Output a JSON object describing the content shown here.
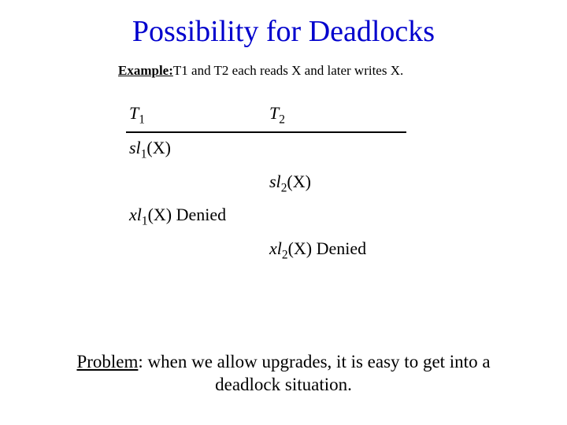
{
  "title": "Possibility for Deadlocks",
  "example": {
    "label": "Example:",
    "text": "T1 and T2 each reads X and later writes X."
  },
  "table": {
    "headers": {
      "t1": "T",
      "t1sub": "1",
      "t2": "T",
      "t2sub": "2"
    },
    "rows": [
      {
        "c1_fn": "sl",
        "c1_sub": "1",
        "c1_arg": "(X)",
        "c2": ""
      },
      {
        "c1": "",
        "c2_fn": "sl",
        "c2_sub": "2",
        "c2_arg": "(X)"
      },
      {
        "c1_fn": "xl",
        "c1_sub": "1",
        "c1_arg": "(X)",
        "c1_tail": " Denied",
        "c2": ""
      },
      {
        "c1": "",
        "c2_fn": "xl",
        "c2_sub": "2",
        "c2_arg": "(X)",
        "c2_tail": " Denied"
      }
    ]
  },
  "problem": {
    "label": "Problem",
    "text": ": when we allow upgrades, it is easy to get into a deadlock situation."
  },
  "colors": {
    "title": "#0000cd",
    "text": "#000000",
    "background": "#ffffff"
  }
}
